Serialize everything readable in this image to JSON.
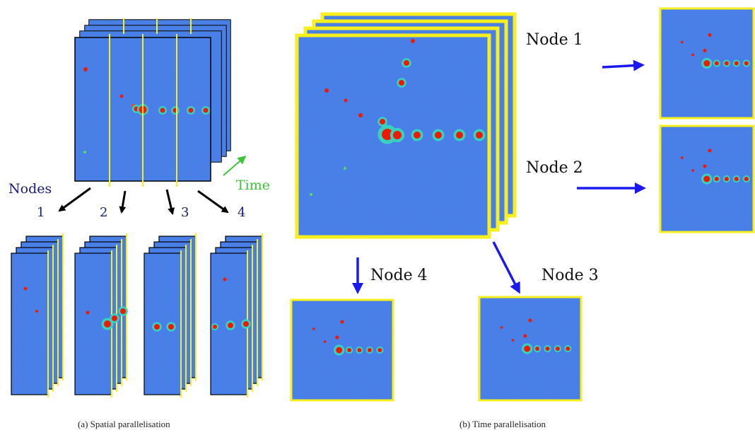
{
  "panel_a": {
    "nodes_label": "Nodes",
    "time_label": "Time",
    "node_numbers": [
      "1",
      "2",
      "3",
      "4"
    ],
    "caption": "(a) Spatial parallelisation"
  },
  "panel_b": {
    "node_labels": [
      "Node 1",
      "Node 2",
      "Node 3",
      "Node 4"
    ],
    "caption": "(b) Time parallelisation"
  },
  "colors": {
    "frame_blue": "#1f4fd0",
    "border_yellow": "#f7ef1e",
    "label_navy": "#1a1a7a",
    "time_green": "#3cc43c",
    "arrow_blue": "#1a1aee",
    "arrow_black": "#000000"
  }
}
